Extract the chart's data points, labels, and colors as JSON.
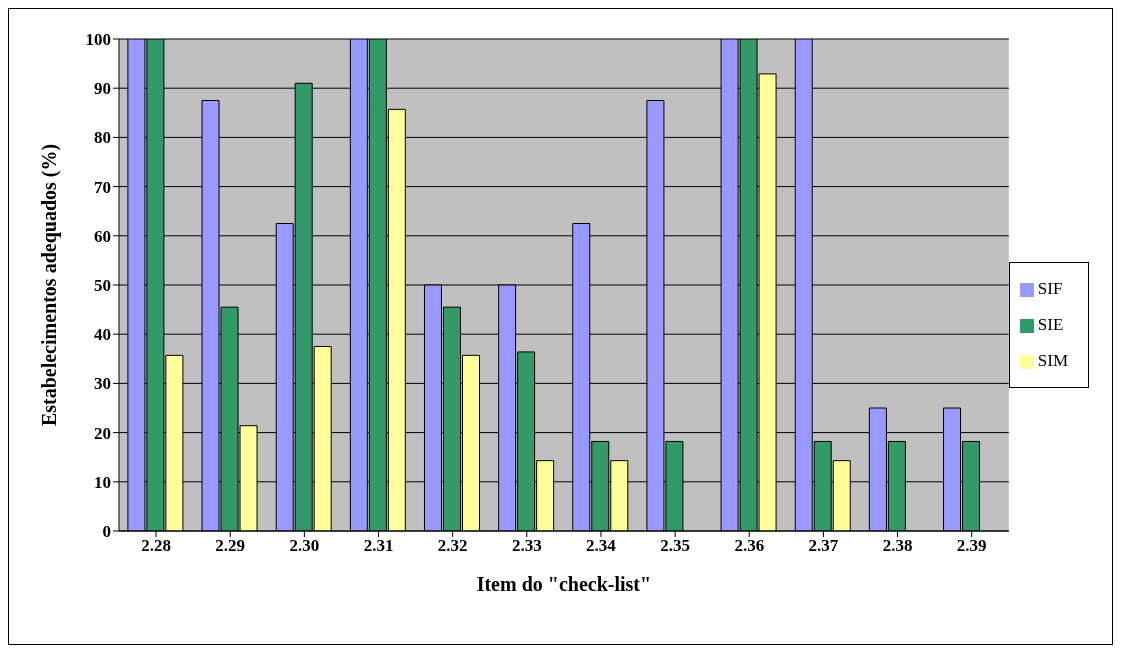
{
  "chart_data": {
    "type": "bar",
    "xlabel": "Item do \"check-list\"",
    "ylabel": "Estabelecimentos adequados (%)",
    "categories": [
      "2.28",
      "2.29",
      "2.30",
      "2.31",
      "2.32",
      "2.33",
      "2.34",
      "2.35",
      "2.36",
      "2.37",
      "2.38",
      "2.39"
    ],
    "series": [
      {
        "name": "SIF",
        "color": "#9999ff",
        "values": [
          100,
          87.5,
          62.5,
          100,
          50,
          50,
          62.5,
          87.5,
          100,
          100,
          25,
          25
        ]
      },
      {
        "name": "SIE",
        "color": "#339966",
        "values": [
          100,
          45.5,
          91,
          100,
          45.5,
          36.4,
          18.2,
          18.2,
          100,
          18.2,
          18.2,
          18.2
        ]
      },
      {
        "name": "SIM",
        "color": "#ffff99",
        "values": [
          35.7,
          21.4,
          37.5,
          85.7,
          35.7,
          14.3,
          14.3,
          0,
          92.9,
          14.3,
          0,
          0
        ]
      }
    ],
    "ylim": [
      0,
      100
    ],
    "yticks": [
      0,
      10,
      20,
      30,
      40,
      50,
      60,
      70,
      80,
      90,
      100
    ],
    "grid": "y",
    "legend": "right"
  }
}
